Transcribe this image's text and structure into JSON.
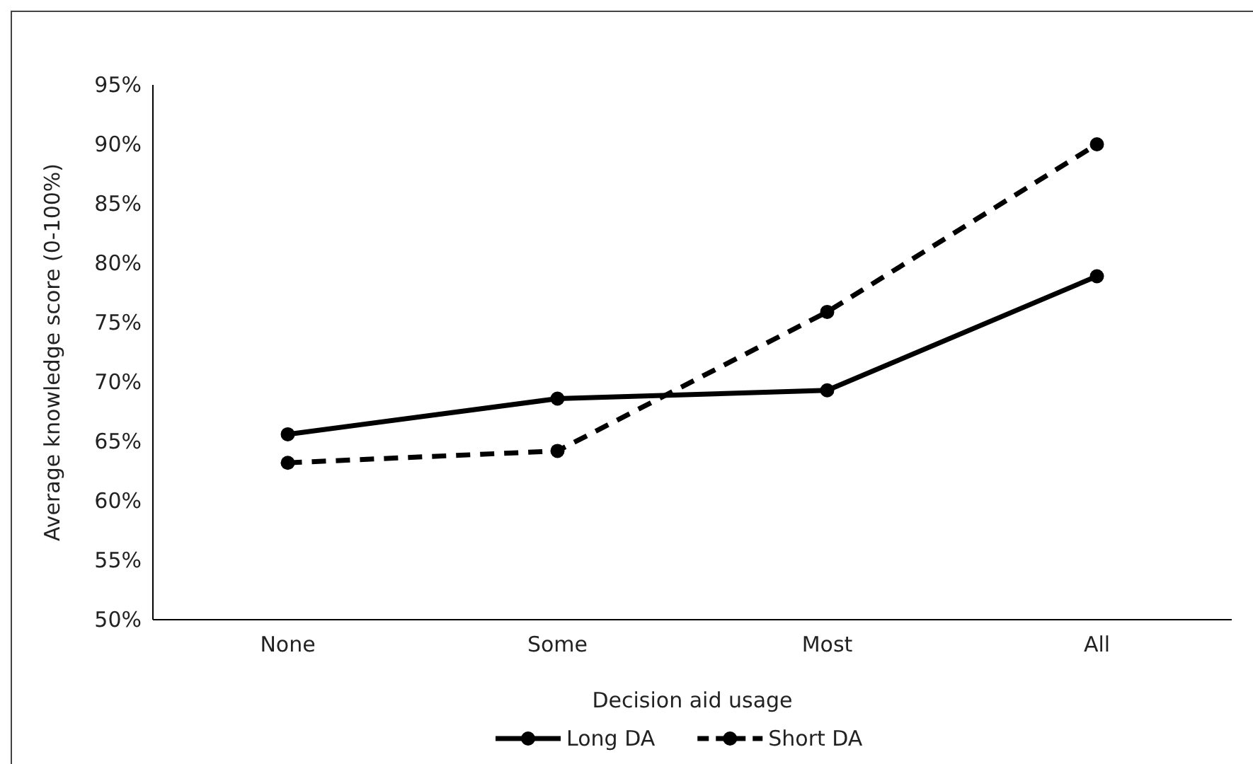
{
  "chart_data": {
    "type": "line",
    "xlabel": "Decision aid usage",
    "ylabel": "Average knowledge score  (0-100%)",
    "categories": [
      "None",
      "Some",
      "Most",
      "All"
    ],
    "series": [
      {
        "name": "Long DA",
        "color": "#000000",
        "line_style": "solid",
        "values": [
          65.6,
          68.6,
          69.3,
          78.9
        ]
      },
      {
        "name": "Short DA",
        "color": "#000000",
        "line_style": "dashed",
        "values": [
          63.2,
          64.2,
          75.9,
          90
        ]
      }
    ],
    "ylim": [
      50,
      95
    ],
    "yticks": [
      {
        "value": 50,
        "label": "50%"
      },
      {
        "value": 55,
        "label": "55%"
      },
      {
        "value": 60,
        "label": "60%"
      },
      {
        "value": 65,
        "label": "65%"
      },
      {
        "value": 70,
        "label": "70%"
      },
      {
        "value": 75,
        "label": "75%"
      },
      {
        "value": 80,
        "label": "80%"
      },
      {
        "value": 85,
        "label": "85%"
      },
      {
        "value": 90,
        "label": "90%"
      },
      {
        "value": 95,
        "label": "95%"
      }
    ],
    "marker": "circle",
    "legend": "bottom",
    "grid": false
  }
}
